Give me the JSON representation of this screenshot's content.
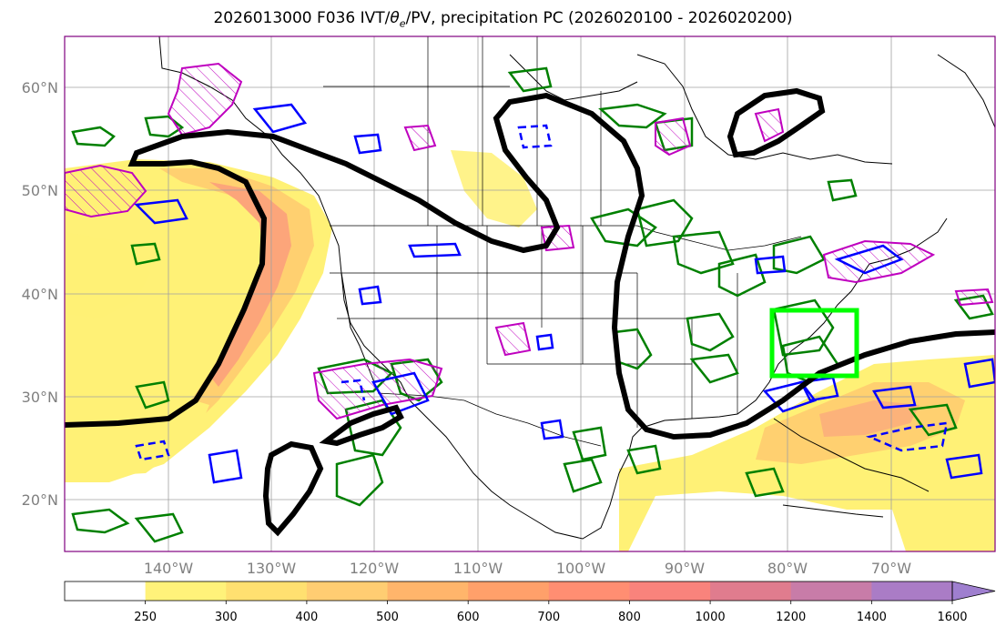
{
  "title": {
    "prefix": "2026013000 F036 IVT/",
    "theta": "θ",
    "theta_sub": "e",
    "suffix": "/PV, precipitation PC (2026020100 - 2026020200)"
  },
  "lat_labels": [
    "60°N",
    "50°N",
    "40°N",
    "30°N",
    "20°N"
  ],
  "lon_labels": [
    "140°W",
    "130°W",
    "120°W",
    "110°W",
    "100°W",
    "90°W",
    "80°W",
    "70°W"
  ],
  "colorbar": {
    "levels": [
      "250",
      "300",
      "400",
      "500",
      "600",
      "700",
      "800",
      "1000",
      "1200",
      "1400",
      "1600"
    ],
    "colors": [
      "#ffffff",
      "#fff27a",
      "#ffe070",
      "#ffcd72",
      "#ffb56b",
      "#ffa06a",
      "#ff8e72",
      "#f9837c",
      "#e07c8e",
      "#c87ca8",
      "#aa7cc6",
      "#9f7fcf"
    ]
  },
  "colors": {
    "border": "#800080",
    "grid": "#a0a0a0",
    "ivt_light": "#fff176",
    "ivt_mid": "#ffc36e",
    "ivt_high": "#fca073",
    "theta_e": "#000000",
    "precip": "#008000",
    "pv_pos": "#0000ff",
    "pv_hatch": "#bf00bf",
    "box": "#00ff00"
  }
}
